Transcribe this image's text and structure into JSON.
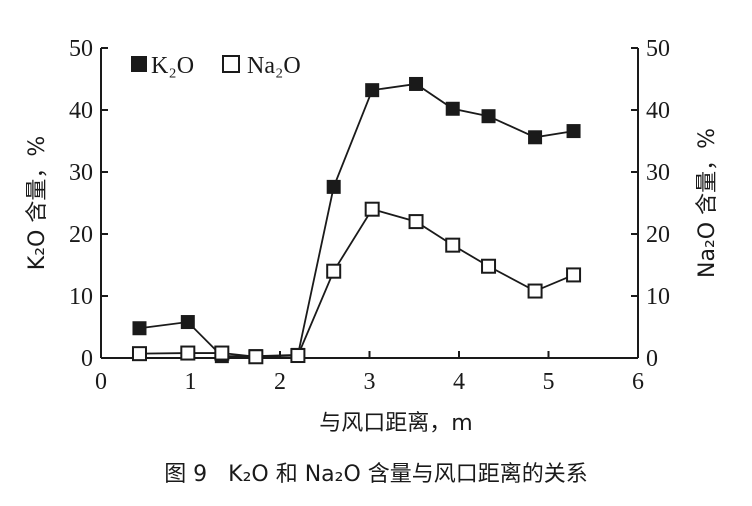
{
  "caption": {
    "figure_no": "图 9",
    "text": "K₂O 和 Na₂O 含量与风口距离的关系"
  },
  "chart_data": {
    "type": "line",
    "title": "",
    "xlabel": "与风口距离，m",
    "ylabel_left": "K₂O 含量，%",
    "ylabel_right": "Na₂O 含量，%",
    "xlim": [
      0,
      6
    ],
    "ylim_left": [
      0,
      50
    ],
    "ylim_right": [
      0,
      50
    ],
    "x_ticks": [
      0,
      1,
      2,
      3,
      4,
      5,
      6
    ],
    "y_ticks": [
      0,
      10,
      20,
      30,
      40,
      50
    ],
    "grid": false,
    "legend_position": "top-left",
    "series": [
      {
        "name": "K₂O",
        "marker": "filled-square",
        "axis": "left",
        "x": [
          0.43,
          0.97,
          1.35,
          1.73,
          2.2,
          2.6,
          3.03,
          3.52,
          3.93,
          4.33,
          4.85,
          5.28
        ],
        "values": [
          4.8,
          5.8,
          0.3,
          0.3,
          0.5,
          27.6,
          43.2,
          44.2,
          40.2,
          39.0,
          35.6,
          36.6
        ]
      },
      {
        "name": "Na₂O",
        "marker": "open-square",
        "axis": "right",
        "x": [
          0.43,
          0.97,
          1.35,
          1.73,
          2.2,
          2.6,
          3.03,
          3.52,
          3.93,
          4.33,
          4.85,
          5.28
        ],
        "values": [
          0.7,
          0.8,
          0.8,
          0.2,
          0.4,
          14.0,
          24.0,
          22.0,
          18.2,
          14.8,
          10.8,
          13.4
        ]
      }
    ]
  }
}
